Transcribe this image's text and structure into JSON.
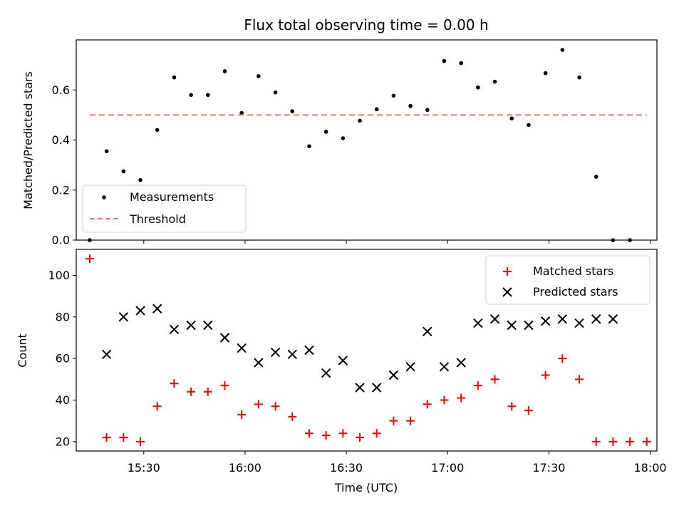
{
  "chart_data": [
    {
      "type": "scatter",
      "title": "Flux total observing time = 0.00 h",
      "xlabel": "",
      "ylabel": "Matched/Predicted stars",
      "xlim": [
        "15:10",
        "18:02"
      ],
      "ylim": [
        0,
        0.8
      ],
      "yticks": [
        0.0,
        0.2,
        0.4,
        0.6
      ],
      "ytick_labels": [
        "0.0",
        "0.2",
        "0.4",
        "0.6"
      ],
      "grid": false,
      "legend_position": "lower-left",
      "x": [
        "15:14",
        "15:19",
        "15:24",
        "15:29",
        "15:34",
        "15:39",
        "15:44",
        "15:49",
        "15:54",
        "15:59",
        "16:04",
        "16:09",
        "16:14",
        "16:19",
        "16:24",
        "16:29",
        "16:34",
        "16:39",
        "16:44",
        "16:49",
        "16:54",
        "16:59",
        "17:04",
        "17:09",
        "17:14",
        "17:19",
        "17:24",
        "17:29",
        "17:34",
        "17:39",
        "17:44",
        "17:49",
        "17:54"
      ],
      "series": [
        {
          "name": "Measurements",
          "color": "#000000",
          "marker": "dot",
          "values": [
            0.0,
            0.355,
            0.275,
            0.24,
            0.44,
            0.65,
            0.58,
            0.58,
            0.675,
            0.508,
            0.655,
            0.59,
            0.515,
            0.375,
            0.433,
            0.407,
            0.477,
            0.523,
            0.577,
            0.536,
            0.52,
            0.716,
            0.707,
            0.61,
            0.633,
            0.486,
            0.46,
            0.667,
            0.76,
            0.65,
            0.253,
            0.0,
            0.0
          ]
        },
        {
          "name": "Threshold",
          "color": "#ff7070",
          "style": "dashed",
          "x": [
            "15:14",
            "17:59"
          ],
          "values": [
            0.5,
            0.5
          ]
        }
      ]
    },
    {
      "type": "scatter",
      "title": "",
      "xlabel": "Time (UTC)",
      "ylabel": "Count",
      "xlim": [
        "15:10",
        "18:02"
      ],
      "ylim": [
        15.5,
        112.5
      ],
      "yticks": [
        20,
        40,
        60,
        80,
        100
      ],
      "ytick_labels": [
        "20",
        "40",
        "60",
        "80",
        "100"
      ],
      "xticks": [
        "15:30",
        "16:00",
        "16:30",
        "17:00",
        "17:30",
        "18:00"
      ],
      "xtick_labels": [
        "15:30",
        "16:00",
        "16:30",
        "17:00",
        "17:30",
        "18:00"
      ],
      "grid": false,
      "legend_position": "upper-right",
      "series": [
        {
          "name": "Matched stars",
          "color": "#ff0000",
          "marker": "plus",
          "x": [
            "15:14",
            "15:19",
            "15:24",
            "15:29",
            "15:34",
            "15:39",
            "15:44",
            "15:49",
            "15:54",
            "15:59",
            "16:04",
            "16:09",
            "16:14",
            "16:19",
            "16:24",
            "16:29",
            "16:34",
            "16:39",
            "16:44",
            "16:49",
            "16:54",
            "16:59",
            "17:04",
            "17:09",
            "17:14",
            "17:19",
            "17:24",
            "17:29",
            "17:34",
            "17:39",
            "17:44",
            "17:49",
            "17:54",
            "17:59"
          ],
          "values": [
            108,
            22,
            22,
            20,
            37,
            48,
            44,
            44,
            47,
            33,
            38,
            37,
            32,
            24,
            23,
            24,
            22,
            24,
            30,
            30,
            38,
            40,
            41,
            47,
            50,
            37,
            35,
            52,
            60,
            50,
            20,
            20,
            20,
            20
          ]
        },
        {
          "name": "Predicted stars",
          "color": "#000000",
          "marker": "x",
          "x": [
            "15:19",
            "15:24",
            "15:29",
            "15:34",
            "15:39",
            "15:44",
            "15:49",
            "15:54",
            "15:59",
            "16:04",
            "16:09",
            "16:14",
            "16:19",
            "16:24",
            "16:29",
            "16:34",
            "16:39",
            "16:44",
            "16:49",
            "16:54",
            "16:59",
            "17:04",
            "17:09",
            "17:14",
            "17:19",
            "17:24",
            "17:29",
            "17:34",
            "17:39",
            "17:44",
            "17:49"
          ],
          "values": [
            62,
            80,
            83,
            84,
            74,
            76,
            76,
            70,
            65,
            58,
            63,
            62,
            64,
            53,
            59,
            46,
            46,
            52,
            56,
            73,
            56,
            58,
            77,
            79,
            76,
            76,
            78,
            79,
            77,
            79,
            79
          ]
        }
      ]
    }
  ]
}
